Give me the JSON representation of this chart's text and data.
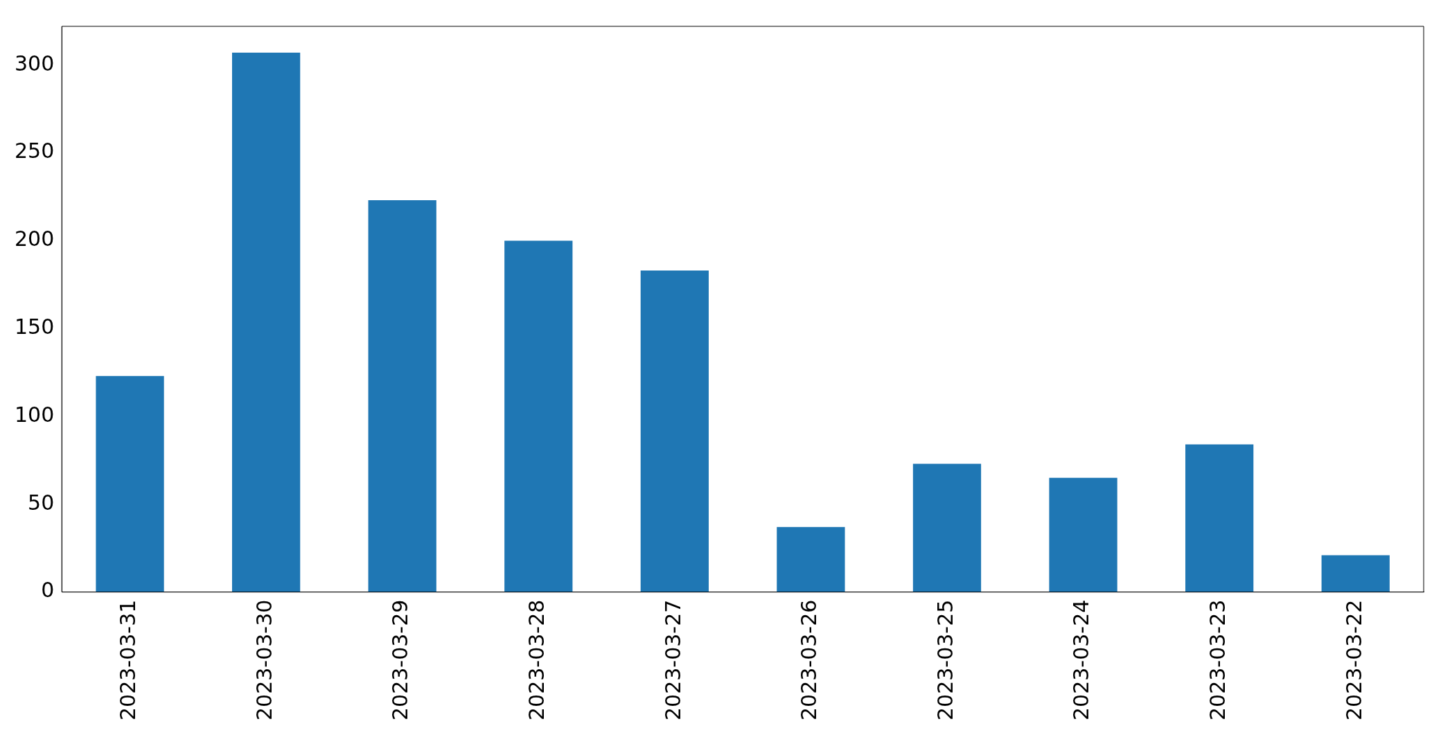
{
  "chart_data": {
    "type": "bar",
    "categories": [
      "2023-03-31",
      "2023-03-30",
      "2023-03-29",
      "2023-03-28",
      "2023-03-27",
      "2023-03-26",
      "2023-03-25",
      "2023-03-24",
      "2023-03-23",
      "2023-03-22"
    ],
    "values": [
      123,
      307,
      223,
      200,
      183,
      37,
      73,
      65,
      84,
      21
    ],
    "color": "#1f77b4",
    "ylim": [
      0,
      322
    ],
    "yticks": [
      0,
      50,
      100,
      150,
      200,
      250,
      300
    ],
    "grid": false,
    "legend": false
  }
}
